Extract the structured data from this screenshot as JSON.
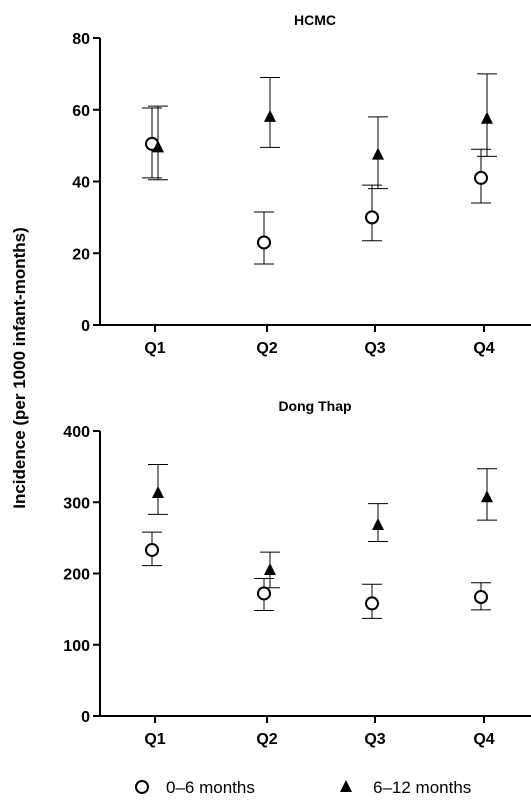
{
  "chart_data": {
    "type": "scatter",
    "ylabel": "Incidence (per 1000 infant-months)",
    "legend": {
      "placement": "bottom",
      "entries": [
        {
          "name": "0–6 months",
          "marker": "circle-open"
        },
        {
          "name": "6–12 months",
          "marker": "triangle-filled"
        }
      ]
    },
    "panels": [
      {
        "title": "HCMC",
        "categories": [
          "Q1",
          "Q2",
          "Q3",
          "Q4"
        ],
        "ylim": [
          0,
          80
        ],
        "yticks": [
          0,
          20,
          40,
          60,
          80
        ],
        "series": [
          {
            "name": "0–6 months",
            "values": [
              50.5,
              23,
              30,
              41
            ],
            "lower": [
              41,
              17,
              23.5,
              34
            ],
            "upper": [
              60.5,
              31.5,
              39,
              49
            ]
          },
          {
            "name": "6–12 months",
            "values": [
              49.5,
              58,
              47.5,
              57.5
            ],
            "lower": [
              40.5,
              49.5,
              38,
              47
            ],
            "upper": [
              61,
              69,
              58,
              70
            ]
          }
        ]
      },
      {
        "title": "Dong  Thap",
        "categories": [
          "Q1",
          "Q2",
          "Q3",
          "Q4"
        ],
        "ylim": [
          0,
          400
        ],
        "yticks": [
          0,
          100,
          200,
          300,
          400
        ],
        "series": [
          {
            "name": "0–6 months",
            "values": [
              233,
              172,
              158,
              167
            ],
            "lower": [
              211,
              148,
              137,
              149
            ],
            "upper": [
              258,
              193,
              185,
              187
            ]
          },
          {
            "name": "6–12 months",
            "values": [
              313,
              205,
              268,
              307
            ],
            "lower": [
              283,
              180,
              245,
              275
            ],
            "upper": [
              353,
              230,
              298,
              347
            ]
          }
        ]
      }
    ]
  }
}
